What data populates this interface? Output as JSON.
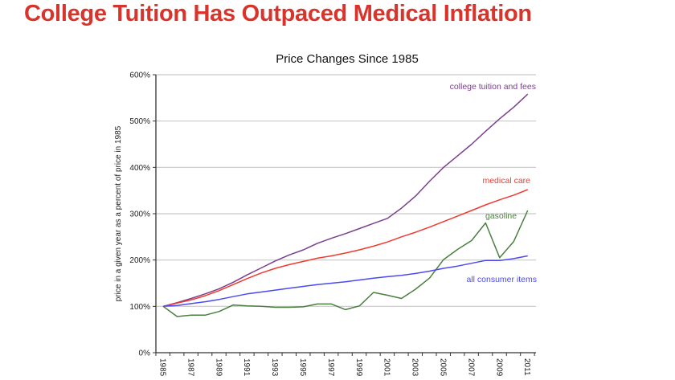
{
  "slide": {
    "title": "College Tuition Has Outpaced Medical Inflation",
    "title_color": "#d9342b"
  },
  "chart_data": {
    "type": "line",
    "title": "Price Changes Since 1985",
    "xlabel": "",
    "ylabel": "price in a given year as a percent of price in 1985",
    "x": [
      1985,
      1986,
      1987,
      1988,
      1989,
      1990,
      1991,
      1992,
      1993,
      1994,
      1995,
      1996,
      1997,
      1998,
      1999,
      2000,
      2001,
      2002,
      2003,
      2004,
      2005,
      2006,
      2007,
      2008,
      2009,
      2010,
      2011
    ],
    "x_tick_labels": [
      "1985",
      "1987",
      "1989",
      "1991",
      "1993",
      "1995",
      "1997",
      "1999",
      "2001",
      "2003",
      "2005",
      "2007",
      "2009",
      "2011"
    ],
    "ylim": [
      0,
      600
    ],
    "y_ticks": [
      0,
      100,
      200,
      300,
      400,
      500,
      600
    ],
    "y_tick_labels": [
      "0%",
      "100%",
      "200%",
      "300%",
      "400%",
      "500%",
      "600%"
    ],
    "grid": true,
    "legend": "inline labels",
    "series": [
      {
        "name": "college tuition and fees",
        "color": "#7b3f8c",
        "values": [
          100,
          108,
          117,
          127,
          138,
          152,
          168,
          183,
          198,
          211,
          222,
          236,
          247,
          257,
          268,
          279,
          290,
          312,
          338,
          370,
          400,
          425,
          450,
          478,
          505,
          530,
          558
        ]
      },
      {
        "name": "medical care",
        "color": "#ee3b2f",
        "values": [
          100,
          107,
          114,
          123,
          134,
          147,
          160,
          172,
          182,
          190,
          197,
          204,
          209,
          215,
          222,
          230,
          239,
          250,
          260,
          271,
          283,
          295,
          307,
          319,
          330,
          340,
          352
        ]
      },
      {
        "name": "gasoline",
        "color": "#4a7f3f",
        "values": [
          100,
          78,
          81,
          81,
          89,
          103,
          101,
          100,
          98,
          98,
          99,
          105,
          105,
          93,
          101,
          130,
          124,
          117,
          137,
          161,
          201,
          223,
          242,
          280,
          205,
          240,
          307
        ]
      },
      {
        "name": "all consumer items",
        "color": "#4a4af0",
        "values": [
          100,
          102,
          106,
          110,
          115,
          121,
          127,
          131,
          135,
          139,
          143,
          147,
          150,
          153,
          157,
          161,
          164,
          167,
          171,
          176,
          182,
          187,
          193,
          199,
          199,
          203,
          209
        ]
      }
    ]
  }
}
